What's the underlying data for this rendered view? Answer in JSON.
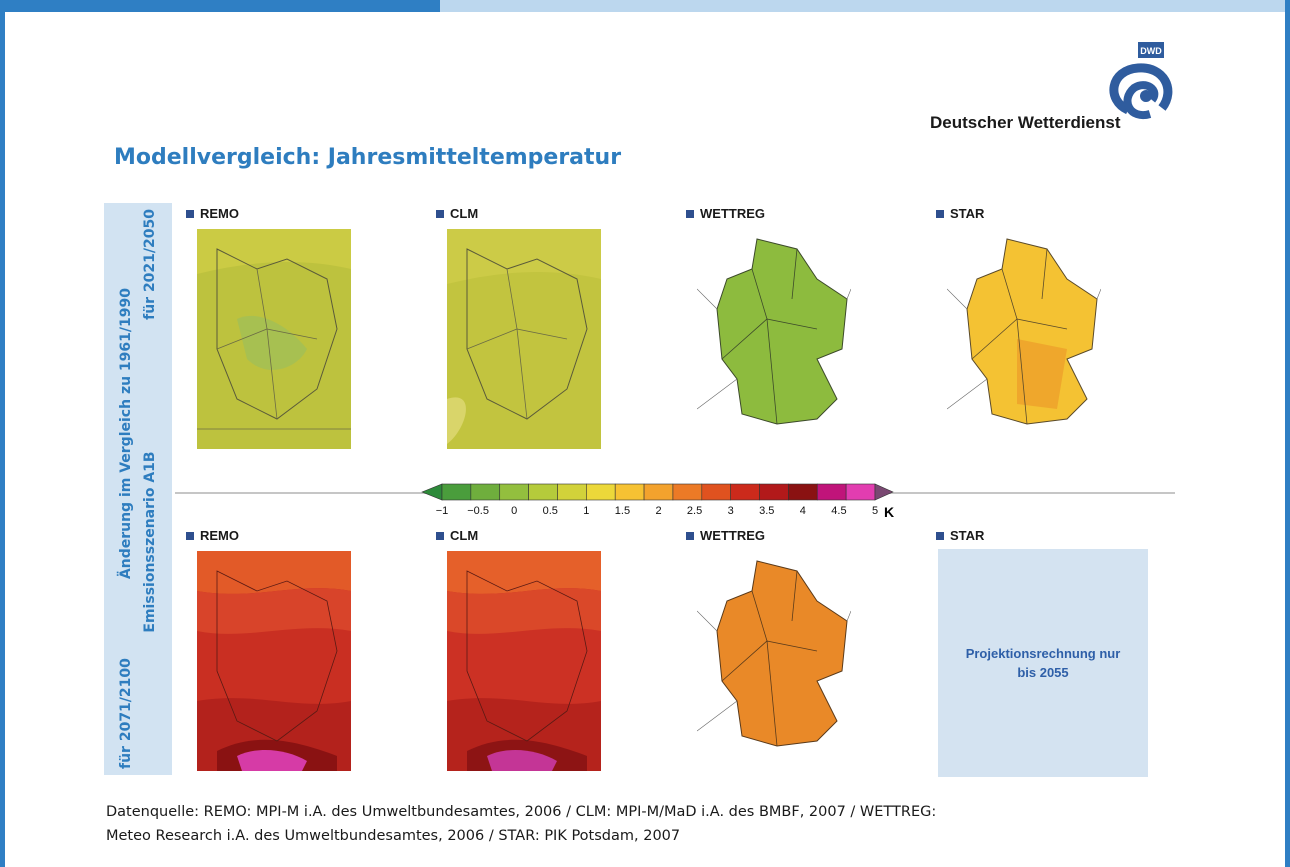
{
  "header": {
    "org": "Deutscher Wetterdienst",
    "logo_text": "DWD",
    "title": "Modellvergleich: Jahresmitteltemperatur"
  },
  "side_label": {
    "line1_left": "Änderung im Vergleich zu 1961/1990",
    "line1_right": "",
    "line2_left": "Emissionsszenario A1B",
    "line2_right": "",
    "period_top": "für 2021/2050",
    "period_bottom": "für 2071/2100"
  },
  "rows": [
    {
      "period": "für 2021/2050",
      "panels": [
        {
          "label": "REMO",
          "color": "#b7c43b"
        },
        {
          "label": "CLM",
          "color": "#bcc83c"
        },
        {
          "label": "WETTREG",
          "color": "#8dbb3e"
        },
        {
          "label": "STAR",
          "color": "#f4c233"
        }
      ]
    },
    {
      "period": "für 2071/2100",
      "panels": [
        {
          "label": "REMO",
          "color": "#cf3224"
        },
        {
          "label": "CLM",
          "color": "#d13427"
        },
        {
          "label": "WETTREG",
          "color": "#e98928"
        },
        {
          "label": "STAR",
          "color": "#d4e3f1"
        }
      ]
    }
  ],
  "star_note": "Projektionsrechnung nur bis 2055",
  "legend": {
    "unit": "K",
    "ticks": [
      "−1",
      "−0.5",
      "0",
      "0.5",
      "1",
      "1.5",
      "2",
      "2.5",
      "3",
      "3.5",
      "4",
      "4.5",
      "5"
    ],
    "colors": [
      "#2d8a3a",
      "#4a9d3c",
      "#6fae3d",
      "#93bf3e",
      "#b5cb3b",
      "#d2d23a",
      "#ecd83a",
      "#f6c233",
      "#f3a22d",
      "#ec7a26",
      "#e0521f",
      "#cc2a1b",
      "#b2191a",
      "#8a1212",
      "#c0147a",
      "#e23db0",
      "#7a4872"
    ]
  },
  "footer": {
    "line1": "Datenquelle: REMO: MPI-M i.A. des Umweltbundesamtes, 2006 / CLM: MPI-M/MaD i.A. des BMBF, 2007 / WETTREG:",
    "line2": "Meteo Research i.A. des Umweltbundesamtes, 2006 / STAR: PIK Potsdam, 2007"
  }
}
